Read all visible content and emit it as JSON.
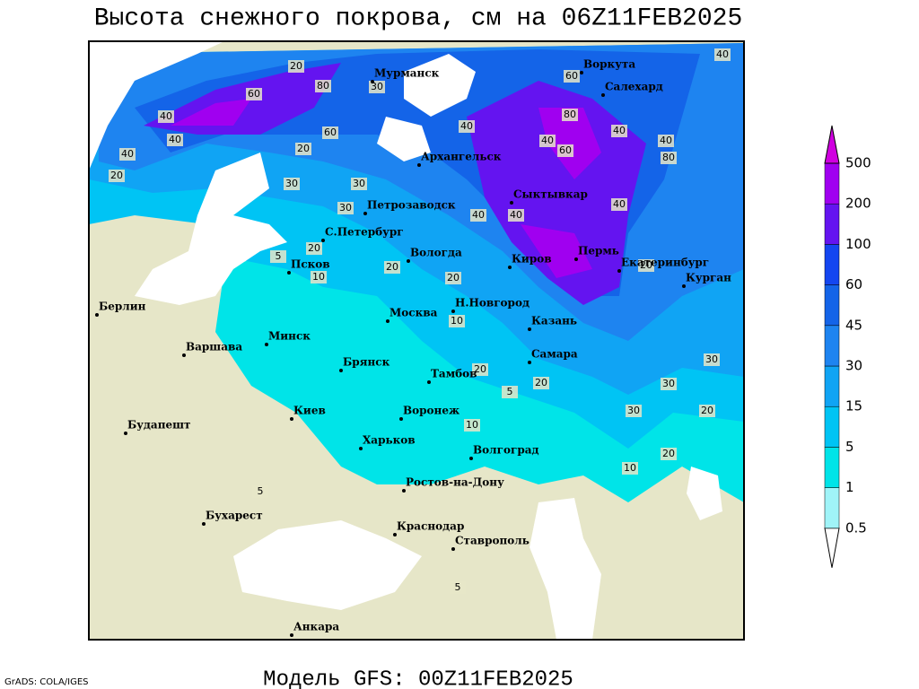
{
  "title": "Высота снежного покрова, см на 06Z11FEB2025",
  "footer": "Модель GFS: 00Z11FEB2025",
  "credit": "GrADS: COLA/IGES",
  "cities": [
    "Мурманск",
    "Воркута",
    "Салехард",
    "Архангельск",
    "Сыктывкар",
    "Петрозаводск",
    "С.Петербург",
    "Вологда",
    "Киров",
    "Пермь",
    "Екатеринбург",
    "Курган",
    "Псков",
    "Берлин",
    "Н.Новгород",
    "Москва",
    "Казань",
    "Минск",
    "Варшава",
    "Самара",
    "Брянск",
    "Тамбов",
    "Киев",
    "Воронеж",
    "Будапешт",
    "Харьков",
    "Волгоград",
    "Ростов-на-Дону",
    "Бухарест",
    "Краснодар",
    "Ставрополь",
    "Анкара"
  ],
  "legend": {
    "levels": [
      0.5,
      1,
      5,
      15,
      30,
      45,
      60,
      100,
      200,
      500
    ],
    "colors": [
      "#ffffff",
      "#a0f4f8",
      "#00e4e8",
      "#00c4f4",
      "#10a4f4",
      "#1e84f0",
      "#1464e8",
      "#1446f0",
      "#6414f0",
      "#a000f0",
      "#d000e0"
    ]
  },
  "contour_labels": [
    40,
    20,
    60,
    80,
    40,
    30,
    60,
    20,
    40,
    40,
    30,
    60,
    40,
    80,
    40,
    20,
    30,
    40,
    40,
    80,
    60,
    40,
    30,
    5,
    10,
    20,
    10,
    20,
    40,
    20,
    30,
    20,
    30,
    20,
    10,
    5,
    20,
    10,
    20,
    20,
    30,
    5,
    5,
    40
  ]
}
